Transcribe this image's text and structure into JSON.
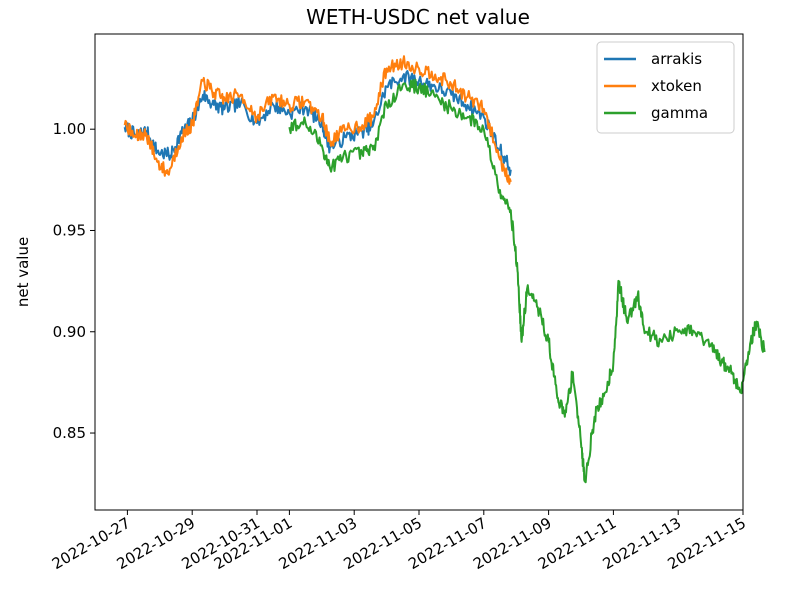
{
  "chart_data": {
    "type": "line",
    "title": "WETH-USDC net value",
    "xlabel": "",
    "ylabel": "net value",
    "x_type": "date",
    "xlim": [
      "2022-10-26",
      "2022-11-15"
    ],
    "ylim": [
      0.812,
      1.047
    ],
    "x_ticks": [
      "2022-10-27",
      "2022-10-29",
      "2022-10-31",
      "2022-11-01",
      "2022-11-03",
      "2022-11-05",
      "2022-11-07",
      "2022-11-09",
      "2022-11-11",
      "2022-11-13",
      "2022-11-15"
    ],
    "y_ticks": [
      "0.85",
      "0.90",
      "0.95",
      "1.00"
    ],
    "legend_position": "top-right",
    "grid": false,
    "series": [
      {
        "name": "arrakis",
        "color": "#1f77b4",
        "points": [
          [
            "2022-10-26T22:00",
            1.001
          ],
          [
            "2022-10-27T06:00",
            0.997
          ],
          [
            "2022-10-27T14:00",
            0.999
          ],
          [
            "2022-10-27T22:00",
            0.989
          ],
          [
            "2022-10-28T08:00",
            0.987
          ],
          [
            "2022-10-28T16:00",
            0.998
          ],
          [
            "2022-10-29T00:00",
            1.004
          ],
          [
            "2022-10-29T08:00",
            1.017
          ],
          [
            "2022-10-29T16:00",
            1.012
          ],
          [
            "2022-10-30T00:00",
            1.01
          ],
          [
            "2022-10-30T12:00",
            1.013
          ],
          [
            "2022-10-31T00:00",
            1.003
          ],
          [
            "2022-10-31T12:00",
            1.012
          ],
          [
            "2022-11-01T00:00",
            1.008
          ],
          [
            "2022-11-01T12:00",
            1.011
          ],
          [
            "2022-11-02T00:00",
            1.003
          ],
          [
            "2022-11-02T06:00",
            0.991
          ],
          [
            "2022-11-02T18:00",
            0.996
          ],
          [
            "2022-11-03T06:00",
            0.999
          ],
          [
            "2022-11-03T14:00",
            1.002
          ],
          [
            "2022-11-04T00:00",
            1.021
          ],
          [
            "2022-11-04T12:00",
            1.026
          ],
          [
            "2022-11-05T00:00",
            1.024
          ],
          [
            "2022-11-05T12:00",
            1.021
          ],
          [
            "2022-11-06T00:00",
            1.017
          ],
          [
            "2022-11-06T12:00",
            1.012
          ],
          [
            "2022-11-07T00:00",
            1.006
          ],
          [
            "2022-11-07T12:00",
            0.99
          ],
          [
            "2022-11-07T20:00",
            0.98
          ]
        ]
      },
      {
        "name": "xtoken",
        "color": "#ff7f0e",
        "points": [
          [
            "2022-10-26T22:00",
            1.002
          ],
          [
            "2022-10-27T06:00",
            0.996
          ],
          [
            "2022-10-27T14:00",
            0.998
          ],
          [
            "2022-10-27T22:00",
            0.984
          ],
          [
            "2022-10-28T06:00",
            0.978
          ],
          [
            "2022-10-28T16:00",
            0.996
          ],
          [
            "2022-10-29T00:00",
            1.002
          ],
          [
            "2022-10-29T08:00",
            1.024
          ],
          [
            "2022-10-29T16:00",
            1.018
          ],
          [
            "2022-10-30T00:00",
            1.015
          ],
          [
            "2022-10-30T12:00",
            1.017
          ],
          [
            "2022-10-31T00:00",
            1.006
          ],
          [
            "2022-10-31T12:00",
            1.016
          ],
          [
            "2022-11-01T00:00",
            1.012
          ],
          [
            "2022-11-01T12:00",
            1.014
          ],
          [
            "2022-11-02T00:00",
            1.006
          ],
          [
            "2022-11-02T06:00",
            0.994
          ],
          [
            "2022-11-02T18:00",
            1.0
          ],
          [
            "2022-11-03T06:00",
            1.002
          ],
          [
            "2022-11-03T14:00",
            1.006
          ],
          [
            "2022-11-04T00:00",
            1.03
          ],
          [
            "2022-11-04T12:00",
            1.033
          ],
          [
            "2022-11-05T00:00",
            1.03
          ],
          [
            "2022-11-05T12:00",
            1.027
          ],
          [
            "2022-11-06T00:00",
            1.022
          ],
          [
            "2022-11-06T12:00",
            1.016
          ],
          [
            "2022-11-07T00:00",
            1.01
          ],
          [
            "2022-11-07T12:00",
            0.985
          ],
          [
            "2022-11-07T20:00",
            0.974
          ]
        ]
      },
      {
        "name": "gamma",
        "color": "#2ca02c",
        "points": [
          [
            "2022-11-01T00:00",
            1.001
          ],
          [
            "2022-11-01T12:00",
            1.003
          ],
          [
            "2022-11-02T00:00",
            0.992
          ],
          [
            "2022-11-02T06:00",
            0.981
          ],
          [
            "2022-11-02T18:00",
            0.987
          ],
          [
            "2022-11-03T06:00",
            0.988
          ],
          [
            "2022-11-03T14:00",
            0.99
          ],
          [
            "2022-11-04T00:00",
            1.012
          ],
          [
            "2022-11-04T12:00",
            1.022
          ],
          [
            "2022-11-05T00:00",
            1.021
          ],
          [
            "2022-11-05T12:00",
            1.016
          ],
          [
            "2022-11-06T00:00",
            1.01
          ],
          [
            "2022-11-06T12:00",
            1.006
          ],
          [
            "2022-11-07T00:00",
            1.0
          ],
          [
            "2022-11-07T12:00",
            0.97
          ],
          [
            "2022-11-07T20:00",
            0.96
          ],
          [
            "2022-11-08T01:00",
            0.93
          ],
          [
            "2022-11-08T04:00",
            0.895
          ],
          [
            "2022-11-08T08:00",
            0.921
          ],
          [
            "2022-11-08T16:00",
            0.912
          ],
          [
            "2022-11-09T00:00",
            0.895
          ],
          [
            "2022-11-09T06:00",
            0.87
          ],
          [
            "2022-11-09T12:00",
            0.858
          ],
          [
            "2022-11-09T18:00",
            0.88
          ],
          [
            "2022-11-10T00:00",
            0.845
          ],
          [
            "2022-11-10T03:00",
            0.826
          ],
          [
            "2022-11-10T10:00",
            0.858
          ],
          [
            "2022-11-10T18:00",
            0.87
          ],
          [
            "2022-11-11T00:00",
            0.885
          ],
          [
            "2022-11-11T04:00",
            0.925
          ],
          [
            "2022-11-11T10:00",
            0.905
          ],
          [
            "2022-11-11T18:00",
            0.918
          ],
          [
            "2022-11-12T00:00",
            0.9
          ],
          [
            "2022-11-12T12:00",
            0.895
          ],
          [
            "2022-11-13T00:00",
            0.9
          ],
          [
            "2022-11-13T12:00",
            0.9
          ],
          [
            "2022-11-14T00:00",
            0.893
          ],
          [
            "2022-11-14T08:00",
            0.885
          ],
          [
            "2022-11-14T16:00",
            0.88
          ],
          [
            "2022-11-14T22:00",
            0.87
          ],
          [
            "2022-11-15T04:00",
            0.89
          ],
          [
            "2022-11-15T10:00",
            0.905
          ],
          [
            "2022-11-15T16:00",
            0.89
          ]
        ]
      }
    ]
  }
}
